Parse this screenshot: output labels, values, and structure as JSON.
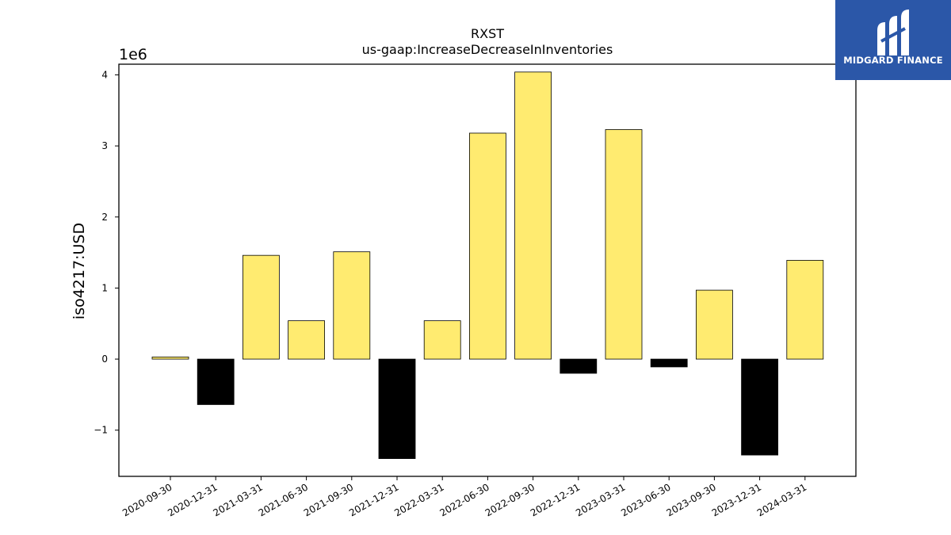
{
  "chart_data": {
    "type": "bar",
    "title": "RXST",
    "subtitle": "us-gaap:IncreaseDecreaseInInventories",
    "ylabel": "iso4217:USD",
    "xlabel": "",
    "scale_label": "1e6",
    "categories": [
      "2020-09-30",
      "2020-12-31",
      "2021-03-31",
      "2021-06-30",
      "2021-09-30",
      "2021-12-31",
      "2022-03-31",
      "2022-06-30",
      "2022-09-30",
      "2022-12-31",
      "2023-03-31",
      "2023-06-30",
      "2023-09-30",
      "2023-12-31",
      "2024-03-31"
    ],
    "values": [
      30000,
      -640000,
      1460000,
      540000,
      1510000,
      -1400000,
      540000,
      3180000,
      4040000,
      -200000,
      3230000,
      -110000,
      970000,
      -1350000,
      1390000
    ],
    "ylim": [
      -1650000,
      4150000
    ],
    "yticks": [
      -1000000,
      0,
      1000000,
      2000000,
      3000000,
      4000000
    ],
    "ytick_labels": [
      "−1",
      "0",
      "1",
      "2",
      "3",
      "4"
    ],
    "positive_color": "#ffeb70",
    "negative_color": "#000000",
    "grid": false,
    "legend": "none"
  },
  "logo": {
    "text": "MIDGARD FINANCE",
    "background": "#2b57a8"
  }
}
